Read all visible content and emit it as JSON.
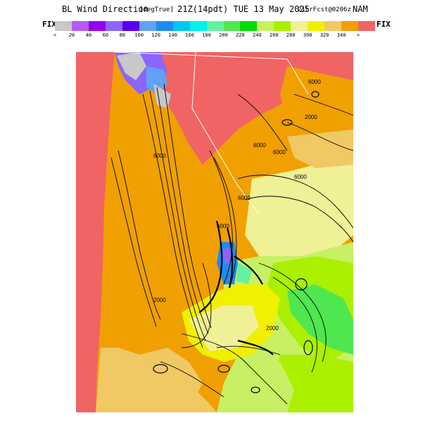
{
  "header": {
    "title": "BL Wind Direction",
    "units": "[degTrue]",
    "time": "21Z(14pdt) TUE 13 May 2025",
    "forecast": "21hrFcst@0206z",
    "model": "NAM"
  },
  "legend": {
    "fix_left": "FIX",
    "fix_right": "FIX",
    "labels": [
      "<",
      "20",
      "40",
      "60",
      "80",
      "100",
      "120",
      "140",
      "160",
      "180",
      "200",
      "220",
      "240",
      "260",
      "280",
      "300",
      "320",
      "340",
      ">"
    ],
    "colors": [
      "#c8c8c8",
      "#b45af0",
      "#9600f0",
      "#8c64ff",
      "#5a00f0",
      "#64a0f5",
      "#1e8cf0",
      "#00c8f0",
      "#00f0f0",
      "#64f0a0",
      "#50e650",
      "#00dc00",
      "#c8f064",
      "#aaf000",
      "#f0f096",
      "#f0f000",
      "#f0c864",
      "#f0a000",
      "#f06464"
    ]
  },
  "map": {
    "contour_labels": [
      "6000",
      "6000",
      "6000",
      "6000",
      "6000",
      "6000",
      "6000",
      "2000",
      "2000",
      "2000"
    ]
  }
}
